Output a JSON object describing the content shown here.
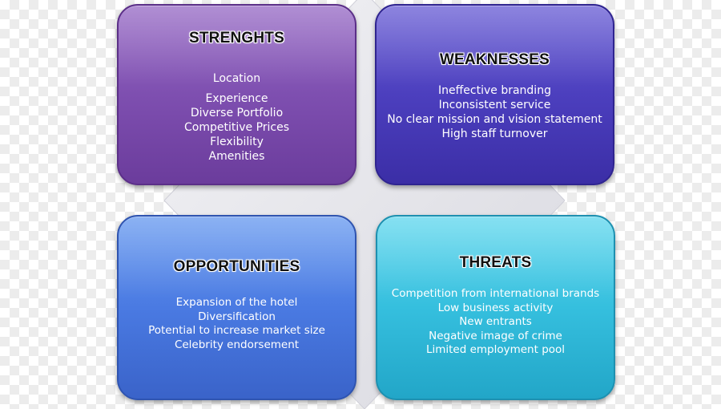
{
  "colors": {
    "strengths": "#7e4fb0",
    "weaknesses": "#4c3fbe",
    "opportunities": "#4a7ae2",
    "threats": "#35bfde",
    "diamond": "#e9e9ee",
    "title_text": "#111111",
    "item_text": "#ffffff"
  },
  "strengths": {
    "title": "STRENGHTS",
    "items": [
      "Location",
      "Experience",
      "Diverse Portfolio",
      "Competitive Prices",
      "Flexibility",
      "Amenities"
    ]
  },
  "weaknesses": {
    "title": "WEAKNESSES",
    "items": [
      "Ineffective branding",
      "Inconsistent service",
      "No clear mission and vision statement",
      "High staff turnover"
    ]
  },
  "opportunities": {
    "title": "OPPORTUNITIES",
    "items": [
      "Expansion of the hotel",
      "Diversification",
      "Potential to increase market size",
      "Celebrity endorsement"
    ]
  },
  "threats": {
    "title": "THREATS",
    "items": [
      "Competition from international brands",
      "Low business activity",
      "New entrants",
      "Negative image of crime",
      "Limited employment pool"
    ]
  }
}
